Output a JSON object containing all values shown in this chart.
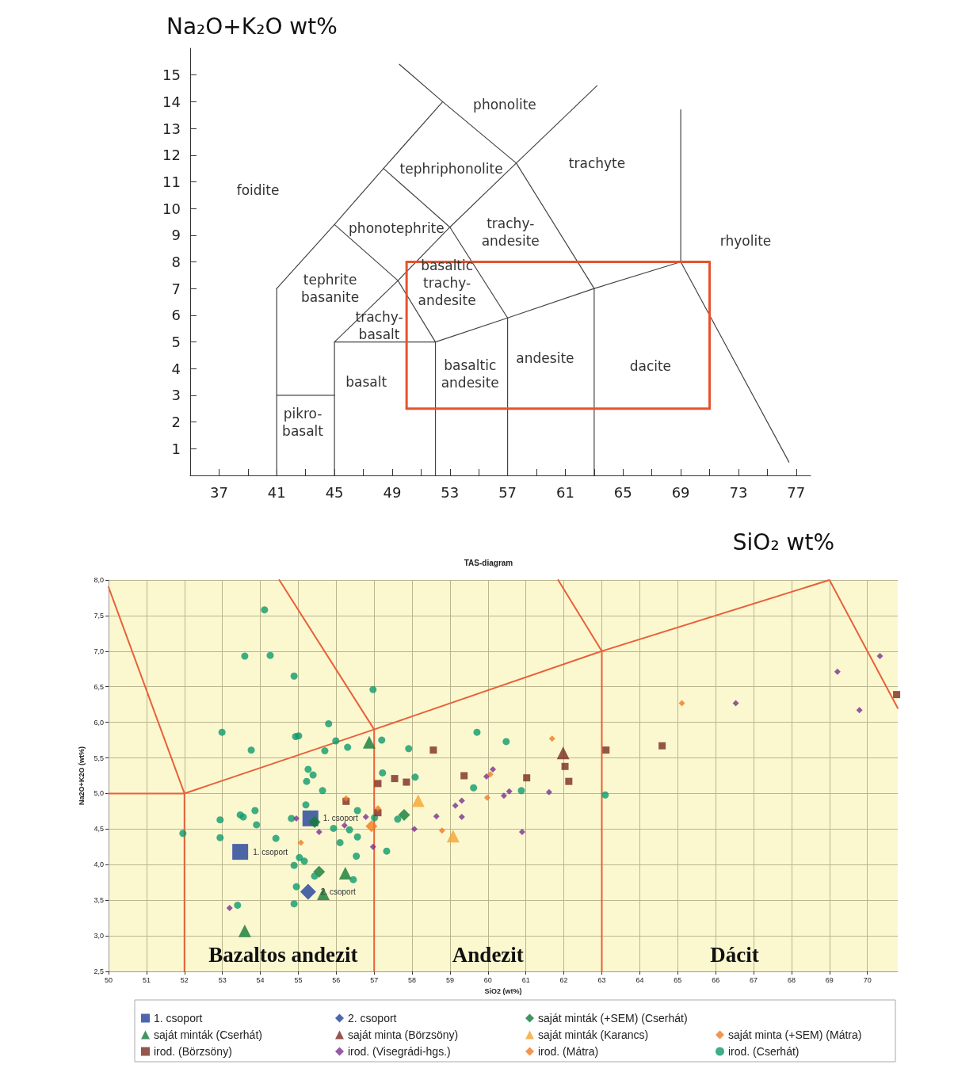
{
  "chart_data": [
    {
      "type": "line",
      "xlabel": "SiO₂ wt%",
      "ylabel": "Na₂O+K₂O wt%",
      "marker": "none",
      "line_style": "solid",
      "xlim": [
        35,
        78
      ],
      "ylim": [
        0,
        16
      ],
      "xticks": [
        37,
        {
          "value": 39,
          "label": null
        },
        41,
        {
          "value": 43,
          "label": null
        },
        45,
        {
          "value": 47,
          "label": null
        },
        49,
        {
          "value": 51,
          "label": null
        },
        53,
        {
          "value": 55,
          "label": null
        },
        57,
        {
          "value": 59,
          "label": null
        },
        61,
        {
          "value": 63,
          "label": null
        },
        65,
        {
          "value": 67,
          "label": null
        },
        69,
        {
          "value": 71,
          "label": null
        },
        73,
        {
          "value": 75,
          "label": null
        },
        77
      ],
      "yticks": [
        1,
        2,
        3,
        4,
        5,
        6,
        7,
        8,
        9,
        10,
        11,
        12,
        13,
        14,
        15
      ],
      "series": [
        {
          "color": "#444444",
          "x": [
            41,
            41
          ],
          "values": [
            0,
            7
          ]
        },
        {
          "color": "#444444",
          "x": [
            41,
            45,
            48.4,
            52.5
          ],
          "values": [
            7,
            9.4,
            11.5,
            14
          ]
        },
        {
          "color": "#444444",
          "x": [
            49.5,
            52.5,
            57.6,
            63
          ],
          "values": [
            15.4,
            14,
            11.7,
            7
          ]
        },
        {
          "color": "#444444",
          "x": [
            45,
            45,
            49.4,
            53,
            57.6,
            63.2
          ],
          "values": [
            0,
            5,
            7.3,
            9.3,
            11.7,
            14.6
          ]
        },
        {
          "color": "#444444",
          "x": [
            48.4,
            53,
            57
          ],
          "values": [
            11.5,
            9.3,
            5.9
          ]
        },
        {
          "color": "#444444",
          "x": [
            45,
            49.4,
            52,
            57,
            63,
            69
          ],
          "values": [
            9.4,
            7.3,
            5,
            5.9,
            7,
            8
          ]
        },
        {
          "color": "#444444",
          "x": [
            45,
            52
          ],
          "values": [
            5,
            5
          ]
        },
        {
          "color": "#444444",
          "x": [
            52,
            52
          ],
          "values": [
            0,
            5
          ]
        },
        {
          "color": "#444444",
          "x": [
            57,
            57
          ],
          "values": [
            0,
            5.9
          ]
        },
        {
          "color": "#444444",
          "x": [
            63,
            63
          ],
          "values": [
            0,
            7
          ]
        },
        {
          "color": "#444444",
          "x": [
            69,
            69
          ],
          "values": [
            8,
            13.7
          ]
        },
        {
          "color": "#444444",
          "x": [
            69,
            76.5
          ],
          "values": [
            8,
            0.5
          ]
        },
        {
          "color": "#444444",
          "x": [
            41,
            45
          ],
          "values": [
            3,
            3
          ]
        },
        {
          "color": "#e5532d",
          "x": [
            50,
            71
          ],
          "values": [
            8,
            8
          ]
        },
        {
          "color": "#e5532d",
          "x": [
            71,
            71
          ],
          "values": [
            8,
            2.5
          ]
        },
        {
          "color": "#e5532d",
          "x": [
            50,
            71
          ],
          "values": [
            2.5,
            2.5
          ]
        },
        {
          "color": "#e5532d",
          "x": [
            50,
            50
          ],
          "values": [
            2.5,
            8
          ]
        }
      ],
      "annotations": [
        "foidite",
        "phonolite",
        "tephriphonolite",
        "trachyte",
        "phonotephrite",
        "trachy-\nandesite",
        "rhyolite",
        "tephrite\nbasanite",
        "basaltic\ntrachy-\nandesite",
        "trachy-\nbasalt",
        "basaltic\nandesite",
        "andesite",
        "dacite",
        "basalt",
        "pikro-\nbasalt"
      ]
    },
    {
      "type": "scatter",
      "title": "TAS-diagram",
      "xlabel": "SiO2 (wt%)",
      "ylabel": "Na2O+K2O (wt%)",
      "grid": true,
      "legend": "bottom",
      "xlim": [
        50,
        70.8
      ],
      "ylim": [
        2.5,
        8
      ],
      "xticks": [
        50,
        51,
        52,
        53,
        54,
        55,
        56,
        57,
        58,
        59,
        60,
        61,
        62,
        63,
        64,
        65,
        66,
        67,
        68,
        69,
        70
      ],
      "yticks": [
        {
          "value": 2.5,
          "label": "2,5"
        },
        {
          "value": 3,
          "label": "3,0"
        },
        {
          "value": 3.5,
          "label": "3,5"
        },
        {
          "value": 4,
          "label": "4,0"
        },
        {
          "value": 4.5,
          "label": "4,5"
        },
        {
          "value": 5,
          "label": "5,0"
        },
        {
          "value": 5.5,
          "label": "5,5"
        },
        {
          "value": 6,
          "label": "6,0"
        },
        {
          "value": 6.5,
          "label": "6,5"
        },
        {
          "value": 7,
          "label": "7,0"
        },
        {
          "value": 7.5,
          "label": "7,5"
        },
        {
          "value": 8,
          "label": "8,0"
        }
      ],
      "series": [
        {
          "type": "line",
          "marker": "none",
          "color": "#e8613a",
          "x": [
            50,
            52,
            57,
            63,
            69,
            70.8
          ],
          "values": [
            7.9,
            5,
            5.9,
            7,
            8,
            6.2
          ]
        },
        {
          "type": "line",
          "marker": "none",
          "color": "#e8613a",
          "x": [
            50,
            52
          ],
          "values": [
            5,
            5
          ]
        },
        {
          "type": "line",
          "marker": "none",
          "color": "#e8613a",
          "x": [
            52,
            52
          ],
          "values": [
            2.5,
            5
          ]
        },
        {
          "type": "line",
          "marker": "none",
          "color": "#e8613a",
          "x": [
            57,
            57
          ],
          "values": [
            2.5,
            5.9
          ]
        },
        {
          "type": "line",
          "marker": "none",
          "color": "#e8613a",
          "x": [
            63,
            63
          ],
          "values": [
            2.5,
            7
          ]
        },
        {
          "type": "line",
          "marker": "none",
          "color": "#e8613a",
          "x": [
            54.5,
            57
          ],
          "values": [
            8,
            5.9
          ]
        },
        {
          "type": "line",
          "marker": "none",
          "color": "#e8613a",
          "x": [
            61.85,
            63
          ],
          "values": [
            8,
            7
          ]
        },
        {
          "name": "1. csoport",
          "marker": "square",
          "color": "#21409a",
          "x": [
            55.32,
            53.47
          ],
          "values": [
            4.65,
            4.18
          ]
        },
        {
          "name": "2. csoport",
          "marker": "diamond",
          "color": "#21409a",
          "x": [
            55.26
          ],
          "values": [
            3.62
          ]
        },
        {
          "name": "saját minták (+SEM) (Cserhát)",
          "marker": "diamond",
          "color": "#127a36",
          "x": [
            55.43,
            55.55,
            57.79
          ],
          "values": [
            4.6,
            3.9,
            4.7
          ]
        },
        {
          "name": "saját minta (+SEM) (Mátra)",
          "marker": "diamond",
          "color": "#f07a22",
          "x": [
            56.93
          ],
          "values": [
            4.54
          ]
        },
        {
          "name": "saját minták (Cserhát)",
          "marker": "triangle",
          "color": "#127a36",
          "x": [
            53.59,
            55.66,
            56.24,
            56.87
          ],
          "values": [
            3.07,
            3.59,
            3.88,
            5.72
          ]
        },
        {
          "name": "saját minta (Börzsöny)",
          "marker": "triangle",
          "color": "#7c2a20",
          "x": [
            61.98
          ],
          "values": [
            5.57
          ]
        },
        {
          "name": "saját minták (Karancs)",
          "marker": "triangle",
          "color": "#f5a431",
          "x": [
            58.16,
            59.08
          ],
          "values": [
            4.9,
            4.4
          ]
        },
        {
          "name": "irod. (Cserhát)",
          "marker": "circle",
          "color": "#0f9a6c",
          "x": [
            52.99,
            52.94,
            51.96,
            52.94,
            54.11,
            53.59,
            54.26,
            54.89,
            56.97,
            53.76,
            54.93,
            55.01,
            55.8,
            55.99,
            55.7,
            55.26,
            55.39,
            55.22,
            55.64,
            55.2,
            53.47,
            53.55,
            53.86,
            53.9,
            54.82,
            55.93,
            56.1,
            54.41,
            55.03,
            55.16,
            54.89,
            55.43,
            54.95,
            54.89,
            53.4,
            56.3,
            57.2,
            57.91,
            57.22,
            58.08,
            56.56,
            57.62,
            57.01,
            56.35,
            56.56,
            57.33,
            56.53,
            56.45,
            59.71,
            60.48,
            59.62,
            60.88,
            63.09
          ],
          "values": [
            5.86,
            4.63,
            4.44,
            4.38,
            7.58,
            6.93,
            6.94,
            6.65,
            6.46,
            5.61,
            5.8,
            5.81,
            5.98,
            5.74,
            5.6,
            5.34,
            5.26,
            5.17,
            5.04,
            4.84,
            4.7,
            4.67,
            4.76,
            4.56,
            4.65,
            4.51,
            4.31,
            4.37,
            4.1,
            4.05,
            3.99,
            3.84,
            3.69,
            3.45,
            3.43,
            5.65,
            5.75,
            5.63,
            5.29,
            5.23,
            4.76,
            4.64,
            4.66,
            4.49,
            4.39,
            4.19,
            4.12,
            3.79,
            5.86,
            5.73,
            5.08,
            5.04,
            4.98
          ]
        },
        {
          "name": "irod. (Börzsöny)",
          "marker": "square",
          "color": "#7c2a20",
          "x": [
            58.56,
            57.54,
            57.85,
            57.1,
            56.26,
            57.1,
            59.37,
            61.02,
            62.03,
            62.13,
            63.11,
            64.59,
            70.77
          ],
          "values": [
            5.61,
            5.21,
            5.16,
            5.14,
            4.89,
            4.73,
            5.25,
            5.22,
            5.38,
            5.17,
            5.61,
            5.67,
            6.39
          ]
        },
        {
          "name": "irod. (Visegrádi-hgs.)",
          "marker": "diamond",
          "color": "#7b2f8e",
          "x": [
            54.95,
            55.55,
            53.19,
            56.78,
            56.22,
            56.97,
            58.06,
            58.64,
            60.13,
            59.96,
            59.31,
            59.14,
            59.31,
            60.42,
            60.56,
            61.61,
            60.9,
            66.53,
            69.21,
            70.33,
            69.79
          ],
          "values": [
            4.65,
            4.46,
            3.39,
            4.67,
            4.55,
            4.25,
            4.5,
            4.68,
            5.34,
            5.24,
            4.9,
            4.83,
            4.67,
            4.97,
            5.03,
            5.02,
            4.46,
            6.27,
            6.71,
            6.93,
            6.17
          ]
        },
        {
          "name": "irod. (Mátra)",
          "marker": "diamond",
          "color": "#f07a22",
          "x": [
            55.07,
            56.26,
            57.1,
            58.79,
            61.69,
            60.06,
            59.98,
            65.11
          ],
          "values": [
            4.31,
            4.93,
            4.79,
            4.48,
            5.77,
            5.27,
            4.94,
            6.27
          ]
        }
      ],
      "annotations": [
        {
          "text": "1. csoport",
          "x": 55.32,
          "y": 4.65
        },
        {
          "text": "1. csoport",
          "x": 53.47,
          "y": 4.18
        },
        {
          "text": "2. csoport",
          "x": 55.26,
          "y": 3.62
        },
        "Bazaltos andezit",
        "Andezit",
        "Dácit"
      ]
    }
  ]
}
